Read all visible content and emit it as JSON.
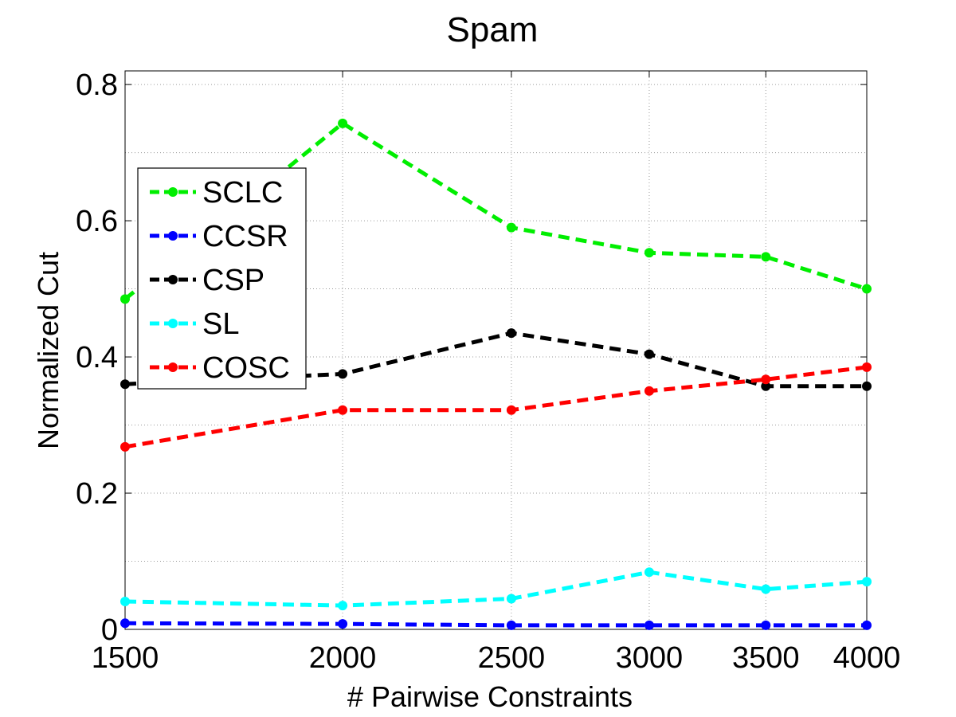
{
  "chart_data": {
    "type": "line",
    "title": "Spam",
    "xlabel": "# Pairwise Constraints",
    "ylabel": "Normalized Cut",
    "x": [
      1500,
      2000,
      2500,
      3000,
      3500,
      4000
    ],
    "x_tick_labels": [
      "1500",
      "2000",
      "2500",
      "3000",
      "3500",
      "4000"
    ],
    "y_ticks": [
      0,
      0.2,
      0.4,
      0.6,
      0.8
    ],
    "y_tick_labels": [
      "0",
      "0.2",
      "0.4",
      "0.6",
      "0.8"
    ],
    "xlim": [
      1500,
      4000
    ],
    "ylim": [
      0,
      0.82
    ],
    "x_scale": "log",
    "grid": true,
    "legend_position": "upper-left",
    "series": [
      {
        "name": "SCLC",
        "color": "#00ee00",
        "values": [
          0.485,
          0.743,
          0.59,
          0.553,
          0.547,
          0.5
        ]
      },
      {
        "name": "CCSR",
        "color": "#0000ff",
        "values": [
          0.009,
          0.008,
          0.006,
          0.006,
          0.006,
          0.006
        ]
      },
      {
        "name": "CSP",
        "color": "#000000",
        "values": [
          0.36,
          0.375,
          0.435,
          0.404,
          0.357,
          0.357
        ]
      },
      {
        "name": "SL",
        "color": "#00ffff",
        "values": [
          0.041,
          0.035,
          0.045,
          0.084,
          0.059,
          0.07
        ]
      },
      {
        "name": "COSC",
        "color": "#ff0000",
        "values": [
          0.268,
          0.322,
          0.322,
          0.35,
          0.367,
          0.385
        ]
      }
    ]
  }
}
